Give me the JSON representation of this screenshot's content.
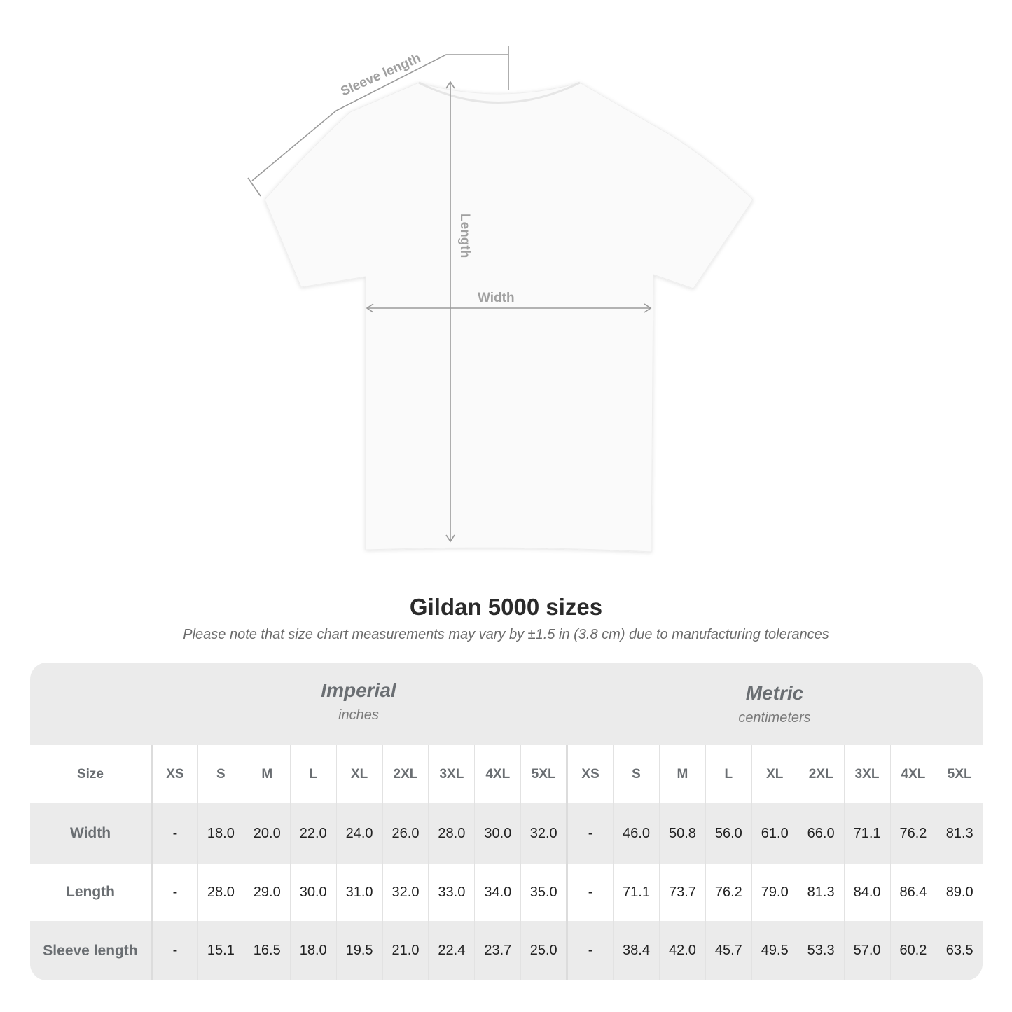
{
  "diagram": {
    "sleeve_label": "Sleeve length",
    "length_label": "Length",
    "width_label": "Width",
    "line_color": "#9a9a9a"
  },
  "header": {
    "title": "Gildan 5000 sizes",
    "note": "Please note that size chart measurements may vary by ±1.5 in (3.8 cm) due to manufacturing tolerances"
  },
  "table": {
    "imperial": {
      "label": "Imperial",
      "unit": "inches"
    },
    "metric": {
      "label": "Metric",
      "unit": "centimeters"
    },
    "size_label": "Size",
    "sizes": [
      "XS",
      "S",
      "M",
      "L",
      "XL",
      "2XL",
      "3XL",
      "4XL",
      "5XL"
    ],
    "rows": [
      {
        "label": "Width",
        "imperial": [
          "-",
          "18.0",
          "20.0",
          "22.0",
          "24.0",
          "26.0",
          "28.0",
          "30.0",
          "32.0"
        ],
        "metric": [
          "-",
          "46.0",
          "50.8",
          "56.0",
          "61.0",
          "66.0",
          "71.1",
          "76.2",
          "81.3"
        ]
      },
      {
        "label": "Length",
        "imperial": [
          "-",
          "28.0",
          "29.0",
          "30.0",
          "31.0",
          "32.0",
          "33.0",
          "34.0",
          "35.0"
        ],
        "metric": [
          "-",
          "71.1",
          "73.7",
          "76.2",
          "79.0",
          "81.3",
          "84.0",
          "86.4",
          "89.0"
        ]
      },
      {
        "label": "Sleeve length",
        "imperial": [
          "-",
          "15.1",
          "16.5",
          "18.0",
          "19.5",
          "21.0",
          "22.4",
          "23.7",
          "25.0"
        ],
        "metric": [
          "-",
          "38.4",
          "42.0",
          "45.7",
          "49.5",
          "53.3",
          "57.0",
          "60.2",
          "63.5"
        ]
      }
    ]
  }
}
